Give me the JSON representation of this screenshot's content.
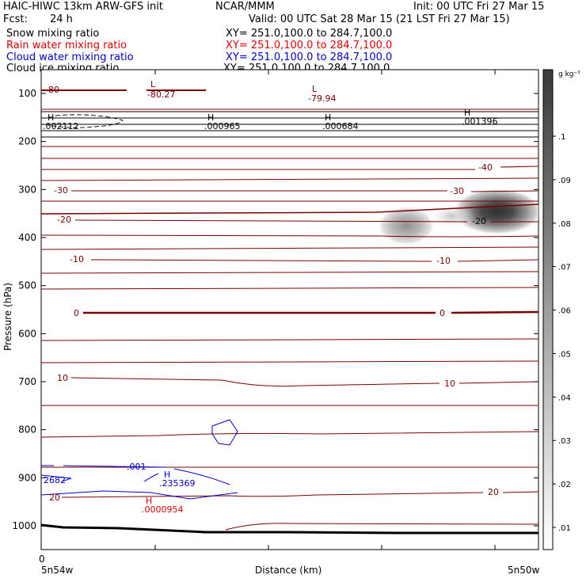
{
  "header": {
    "model": "HAIC-HIWC 13km ARW-GFS init",
    "org": "NCAR/MMM",
    "init": "Init: 00 UTC Fri 27 Mar 15",
    "fcst_label": "Fcst:",
    "fcst_value": "24 h",
    "valid": "Valid: 00 UTC Sat 28 Mar 15 (21 LST Fri 27 Mar 15)",
    "fields": [
      {
        "label": "Snow mixing ratio",
        "xy": "XY= 251.0,100.0 to 284.7,100.0",
        "color": "#000000"
      },
      {
        "label": "Rain water mixing ratio",
        "xy": "XY= 251.0,100.0 to 284.7,100.0",
        "color": "#e00000"
      },
      {
        "label": "Cloud water mixing ratio",
        "xy": "XY= 251.0,100.0 to 284.7,100.0",
        "color": "#0000d0"
      },
      {
        "label": "Cloud ice mixing ratio",
        "xy": "XY= 251.0,100.0 to 284.7,100.0",
        "color": "#000000"
      }
    ]
  },
  "colorbar": {
    "unit": "g kg⁻¹",
    "ticks": [
      ".1",
      ".09",
      ".08",
      ".07",
      ".06",
      ".05",
      ".04",
      ".03",
      ".02",
      ".01"
    ]
  },
  "chart_data": {
    "type": "heatmap",
    "ylabel": "Pressure (hPa)",
    "xlabel": "Distance (km)",
    "y_ticks": [
      100,
      200,
      300,
      400,
      500,
      600,
      700,
      800,
      900,
      1000
    ],
    "ylim": [
      1000,
      50
    ],
    "x_tick_label": "0",
    "x_left_label": "5n54w",
    "x_right_label": "5n50w",
    "temperature_contours": [
      {
        "label": "-80",
        "pressure": 90
      },
      {
        "label": "-40",
        "pressure": 215
      },
      {
        "label": "-30",
        "pressure": 300
      },
      {
        "label": "-20",
        "pressure": 365
      },
      {
        "label": "-10",
        "pressure": 445
      },
      {
        "label": "0",
        "pressure": 555
      },
      {
        "label": "10",
        "pressure": 700
      },
      {
        "label": "20",
        "pressure": 935
      }
    ],
    "extrema_labels": [
      {
        "kind": "L",
        "value": "-80.27",
        "color": "#800000"
      },
      {
        "kind": "L",
        "value": "-79.94",
        "color": "#800000"
      },
      {
        "kind": "H",
        "value": ".002112",
        "color": "#000000"
      },
      {
        "kind": "H",
        "value": ".000965",
        "color": "#000000"
      },
      {
        "kind": "H",
        "value": ".000684",
        "color": "#000000"
      },
      {
        "kind": "H",
        "value": ".001396",
        "color": "#000000"
      },
      {
        "kind": "H",
        "value": ".235369",
        "color": "#0000d0"
      },
      {
        "kind": "H",
        "value": ".0000954",
        "color": "#e00000"
      }
    ],
    "cloud_water_labels": [
      ".001",
      "2682"
    ],
    "shading_max": 0.1,
    "shading_peak_pressure": 345
  }
}
